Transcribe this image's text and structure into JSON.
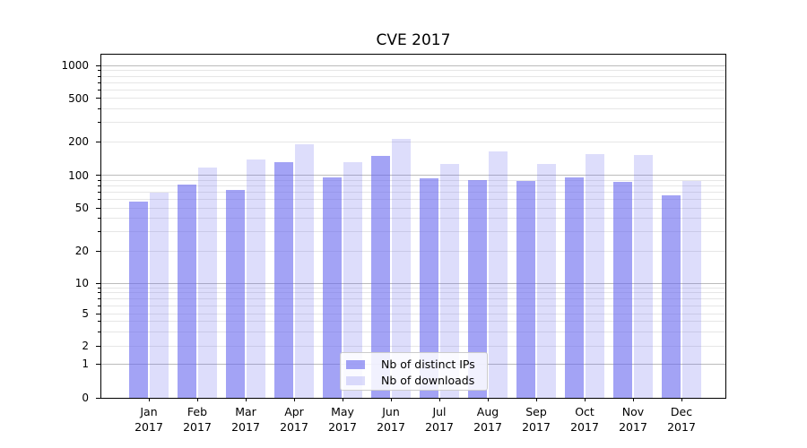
{
  "title": "CVE 2017",
  "chart_data": {
    "type": "bar",
    "title": "CVE 2017",
    "categories": [
      "Jan 2017",
      "Feb 2017",
      "Mar 2017",
      "Apr 2017",
      "May 2017",
      "Jun 2017",
      "Jul 2017",
      "Aug 2017",
      "Sep 2017",
      "Oct 2017",
      "Nov 2017",
      "Dec 2017"
    ],
    "series": [
      {
        "name": "Nb of distinct IPs",
        "color": "rgba(102,102,238,0.60)",
        "values": [
          57,
          82,
          73,
          131,
          95,
          150,
          94,
          90,
          89,
          96,
          87,
          66
        ]
      },
      {
        "name": "Nb of downloads",
        "color": "rgba(102,102,238,0.22)",
        "values": [
          69,
          118,
          140,
          190,
          131,
          212,
          126,
          165,
          126,
          156,
          153,
          89
        ]
      }
    ],
    "xlabel": "",
    "ylabel": "",
    "y_scale": "symlog",
    "y_ticks": [
      0,
      1,
      2,
      5,
      10,
      20,
      50,
      100,
      200,
      500,
      1000
    ],
    "ylim": [
      0,
      1260
    ],
    "grid": "both",
    "legend_position": "lower center"
  }
}
